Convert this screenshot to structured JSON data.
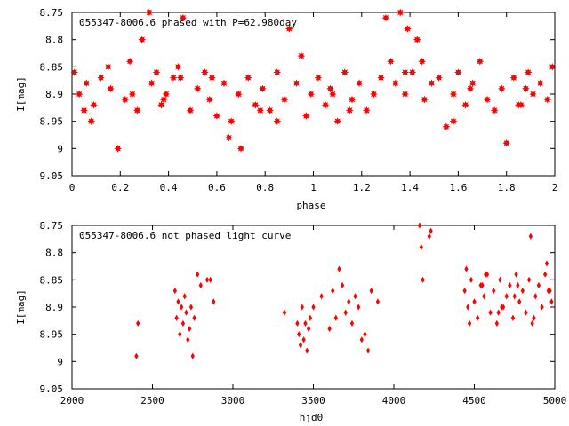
{
  "chart_data": [
    {
      "type": "scatter",
      "title": "055347-8006.6 phased with P=62.980day",
      "xlabel": "phase",
      "ylabel": "I[mag]",
      "xlim": [
        0,
        2
      ],
      "ylim": [
        9.05,
        8.75
      ],
      "y_inverted": true,
      "grid": false,
      "marker": "star",
      "color": "#ff0000",
      "xticks": [
        "0",
        "0.2",
        "0.4",
        "0.6",
        "0.8",
        "1",
        "1.2",
        "1.4",
        "1.6",
        "1.8",
        "2"
      ],
      "yticks": [
        "8.75",
        "8.8",
        "8.85",
        "8.9",
        "8.95",
        "9",
        "9.05"
      ],
      "x": [
        0.01,
        0.03,
        0.06,
        0.09,
        0.12,
        0.16,
        0.19,
        0.22,
        0.24,
        0.27,
        0.29,
        0.32,
        0.33,
        0.35,
        0.37,
        0.39,
        0.42,
        0.44,
        0.46,
        0.49,
        0.52,
        0.55,
        0.57,
        0.6,
        0.63,
        0.66,
        0.69,
        0.7,
        0.73,
        0.76,
        0.79,
        0.82,
        0.85,
        0.88,
        0.9,
        0.93,
        0.95,
        0.97,
        0.99,
        1.02,
        1.05,
        1.07,
        1.1,
        1.13,
        1.16,
        1.19,
        1.22,
        1.25,
        1.28,
        1.3,
        1.32,
        1.34,
        1.36,
        1.38,
        1.39,
        1.41,
        1.43,
        1.46,
        1.49,
        1.52,
        1.55,
        1.58,
        1.6,
        1.63,
        1.66,
        1.69,
        1.72,
        1.75,
        1.78,
        1.8,
        1.83,
        1.86,
        1.89,
        1.91,
        1.94,
        1.97,
        1.99,
        0.05,
        0.15,
        0.25,
        0.45,
        0.65,
        0.85,
        1.15,
        1.45,
        1.65,
        1.85,
        0.08,
        0.38,
        0.58,
        0.78,
        1.08,
        1.38,
        1.58,
        1.88
      ],
      "y": [
        8.86,
        8.9,
        8.88,
        8.92,
        8.87,
        8.89,
        9.0,
        8.91,
        8.84,
        8.93,
        8.8,
        8.75,
        8.88,
        8.86,
        8.92,
        8.9,
        8.87,
        8.85,
        8.76,
        8.93,
        8.89,
        8.86,
        8.91,
        8.94,
        8.88,
        8.95,
        8.9,
        9.0,
        8.87,
        8.92,
        8.89,
        8.93,
        8.86,
        8.91,
        8.78,
        8.88,
        8.83,
        8.94,
        8.9,
        8.87,
        8.92,
        8.89,
        8.95,
        8.86,
        8.91,
        8.88,
        8.93,
        8.9,
        8.87,
        8.76,
        8.84,
        8.88,
        8.75,
        8.9,
        8.78,
        8.86,
        8.8,
        8.91,
        8.88,
        8.87,
        8.96,
        8.9,
        8.86,
        8.92,
        8.88,
        8.84,
        8.91,
        8.93,
        8.89,
        8.99,
        8.87,
        8.92,
        8.86,
        8.9,
        8.88,
        8.91,
        8.85,
        8.93,
        8.85,
        8.9,
        8.87,
        8.98,
        8.95,
        8.93,
        8.84,
        8.89,
        8.92,
        8.95,
        8.91,
        8.87,
        8.93,
        8.9,
        8.86,
        8.95,
        8.89
      ]
    },
    {
      "type": "scatter",
      "title": "055347-8006.6 not phased light curve",
      "xlabel": "hjd0",
      "ylabel": "I[mag]",
      "xlim": [
        2000,
        5000
      ],
      "ylim": [
        9.05,
        8.75
      ],
      "y_inverted": true,
      "grid": false,
      "marker": "diamond",
      "color": "#ff0000",
      "xticks": [
        "2000",
        "2500",
        "3000",
        "3500",
        "4000",
        "4500",
        "5000"
      ],
      "yticks": [
        "8.75",
        "8.8",
        "8.85",
        "8.9",
        "8.95",
        "9",
        "9.05"
      ],
      "x": [
        2400,
        2410,
        2640,
        2650,
        2660,
        2670,
        2680,
        2690,
        2700,
        2710,
        2720,
        2730,
        2740,
        2750,
        2760,
        2780,
        2800,
        2840,
        2860,
        2880,
        3320,
        3400,
        3410,
        3420,
        3430,
        3440,
        3450,
        3460,
        3470,
        3480,
        3500,
        3550,
        3600,
        3620,
        3640,
        3660,
        3680,
        3700,
        3720,
        3740,
        3760,
        3780,
        3800,
        3820,
        3840,
        3860,
        3900,
        4160,
        4170,
        4180,
        4220,
        4230,
        4440,
        4460,
        4480,
        4500,
        4520,
        4540,
        4560,
        4580,
        4600,
        4620,
        4640,
        4660,
        4680,
        4700,
        4720,
        4740,
        4760,
        4780,
        4800,
        4820,
        4840,
        4860,
        4880,
        4900,
        4920,
        4940,
        4960,
        4980,
        4450,
        4550,
        4650,
        4750,
        4850,
        4950,
        4470,
        4570,
        4670,
        4770,
        4870,
        4970
      ],
      "y": [
        8.99,
        8.93,
        8.87,
        8.92,
        8.89,
        8.95,
        8.9,
        8.93,
        8.88,
        8.91,
        8.96,
        8.94,
        8.9,
        8.99,
        8.92,
        8.84,
        8.86,
        8.85,
        8.85,
        8.89,
        8.91,
        8.93,
        8.95,
        8.97,
        8.9,
        8.96,
        8.93,
        8.98,
        8.94,
        8.92,
        8.9,
        8.88,
        8.94,
        8.87,
        8.92,
        8.83,
        8.86,
        8.91,
        8.89,
        8.93,
        8.88,
        8.9,
        8.96,
        8.95,
        8.98,
        8.87,
        8.89,
        8.75,
        8.79,
        8.85,
        8.77,
        8.76,
        8.87,
        8.9,
        8.85,
        8.89,
        8.92,
        8.86,
        8.88,
        8.84,
        8.91,
        8.87,
        8.93,
        8.85,
        8.9,
        8.88,
        8.86,
        8.92,
        8.84,
        8.89,
        8.87,
        8.91,
        8.85,
        8.93,
        8.88,
        8.86,
        8.9,
        8.84,
        8.87,
        8.89,
        8.83,
        8.86,
        8.91,
        8.88,
        8.77,
        8.82,
        8.93,
        8.84,
        8.9,
        8.86,
        8.92,
        8.87
      ]
    }
  ]
}
